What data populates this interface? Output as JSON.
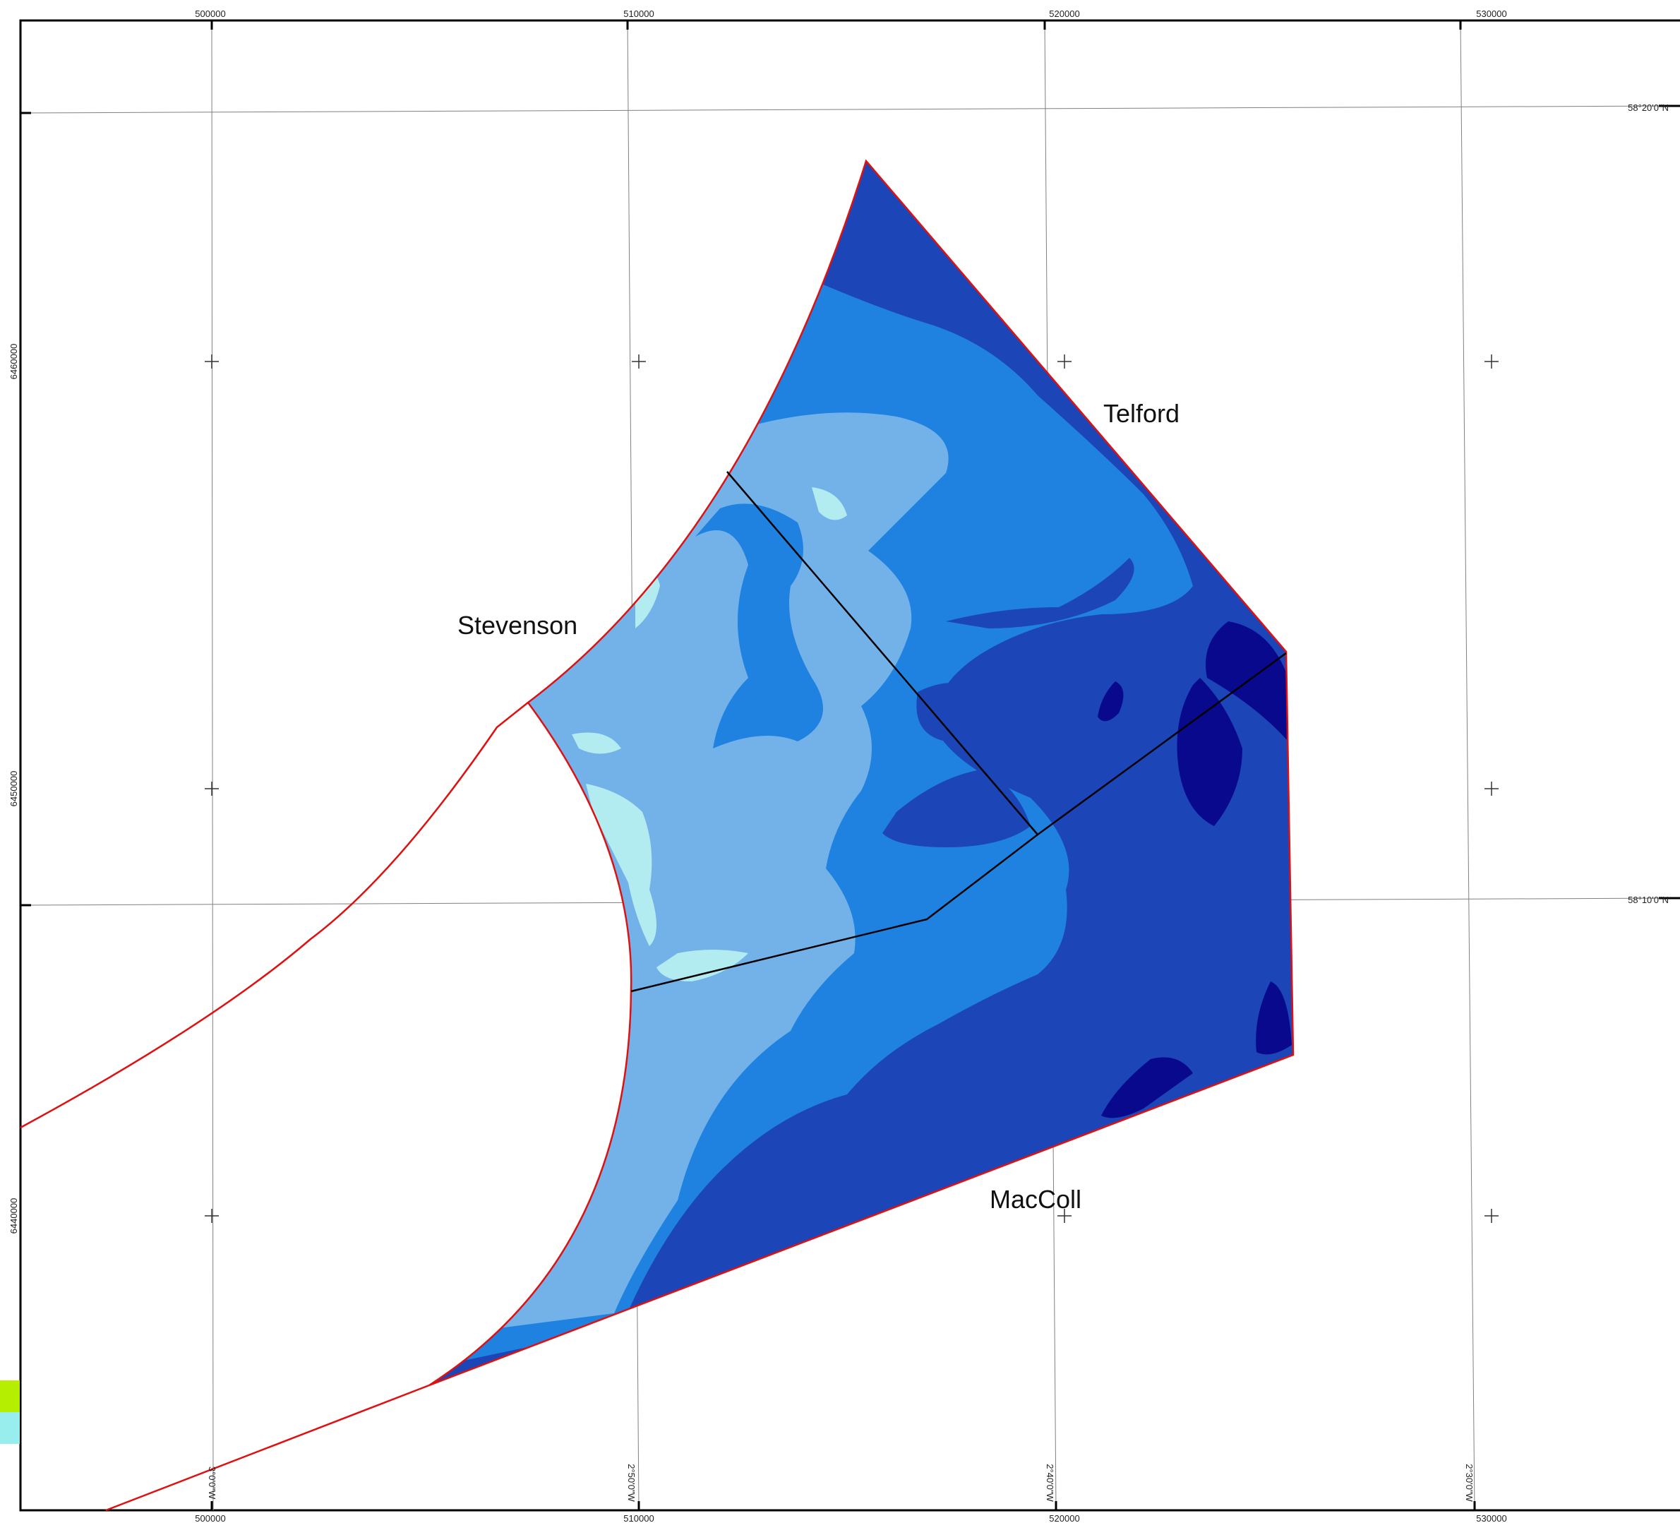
{
  "map": {
    "top_ticks": [
      "500000",
      "510000",
      "520000",
      "530000"
    ],
    "bottom_ticks": [
      "500000",
      "510000",
      "520000",
      "530000"
    ],
    "left_ticks": [
      "6460000",
      "6450000",
      "6440000"
    ],
    "lat_labels": [
      "58°20'0\"N",
      "58°10'0\"N"
    ],
    "lon_labels": [
      "3°0'0\"W",
      "2°50'0\"W",
      "2°40'0\"W",
      "2°30'0\"W"
    ],
    "zones": {
      "telford": "Telford",
      "stevenson": "Stevenson",
      "maccoll": "MacColl"
    },
    "colors": {
      "depth_shallowest": "#b3ecf0",
      "depth_shallow": "#73b2e8",
      "depth_mid": "#1f82e0",
      "depth_deep": "#1c45b7",
      "depth_deepest": "#08098d",
      "boundary": "#e01010",
      "zone_division": "#000000",
      "graticule": "#808080",
      "legend_swatch_1": "#b5ee00",
      "legend_swatch_2": "#97eeec"
    }
  }
}
